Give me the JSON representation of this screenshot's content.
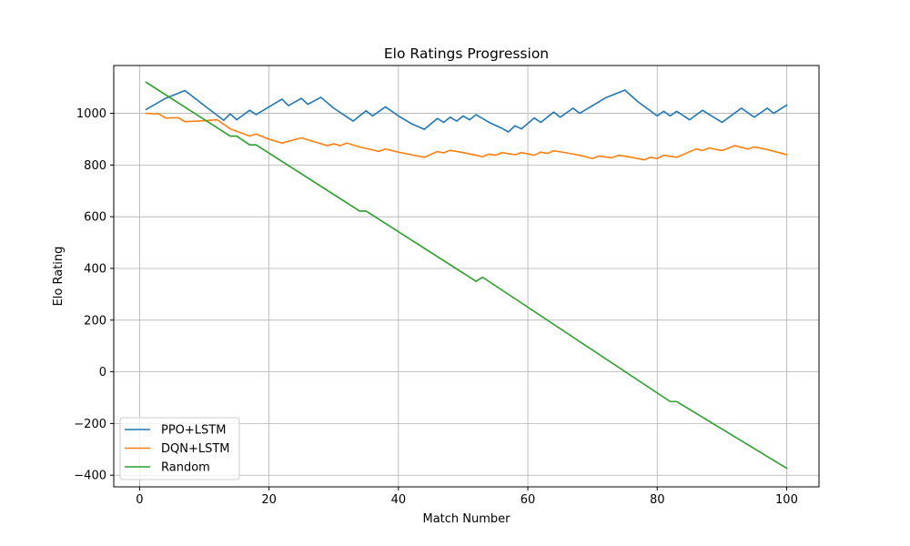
{
  "chart_data": {
    "type": "line",
    "title": "Elo Ratings Progression",
    "xlabel": "Match Number",
    "ylabel": "Elo Rating",
    "xlim": [
      -4,
      105
    ],
    "ylim": [
      -445,
      1185
    ],
    "xticks": [
      0,
      20,
      40,
      60,
      80,
      100
    ],
    "yticks": [
      -400,
      -200,
      0,
      200,
      400,
      600,
      800,
      1000
    ],
    "grid": true,
    "legend_position": "lower-left",
    "series": [
      {
        "name": "PPO+LSTM",
        "color": "#1f77b4",
        "x": [
          1,
          4,
          7,
          10,
          13,
          14,
          15,
          17,
          18,
          20,
          22,
          23,
          25,
          26,
          28,
          30,
          33,
          35,
          36,
          38,
          40,
          42,
          44,
          46,
          47,
          48,
          49,
          50,
          51,
          52,
          54,
          56,
          57,
          58,
          59,
          61,
          62,
          64,
          65,
          67,
          68,
          70,
          72,
          75,
          77,
          80,
          81,
          82,
          83,
          85,
          87,
          90,
          93,
          95,
          97,
          98,
          100
        ],
        "y": [
          1015,
          1058,
          1088,
          1030,
          973,
          998,
          975,
          1012,
          995,
          1025,
          1055,
          1030,
          1058,
          1035,
          1062,
          1020,
          970,
          1010,
          990,
          1025,
          990,
          960,
          938,
          980,
          965,
          985,
          970,
          990,
          975,
          995,
          965,
          942,
          928,
          952,
          940,
          982,
          965,
          1005,
          985,
          1020,
          1000,
          1030,
          1060,
          1090,
          1045,
          990,
          1008,
          990,
          1008,
          975,
          1012,
          965,
          1020,
          985,
          1020,
          1000,
          1032
        ]
      },
      {
        "name": "DQN+LSTM",
        "color": "#ff7f0e",
        "x": [
          1,
          3,
          4,
          6,
          7,
          9,
          12,
          14,
          17,
          18,
          20,
          22,
          25,
          27,
          29,
          30,
          31,
          32,
          34,
          37,
          38,
          40,
          42,
          44,
          46,
          47,
          48,
          50,
          52,
          53,
          54,
          55,
          56,
          58,
          59,
          61,
          62,
          63,
          64,
          66,
          68,
          70,
          71,
          73,
          74,
          76,
          78,
          79,
          80,
          81,
          83,
          86,
          87,
          88,
          90,
          92,
          94,
          95,
          97,
          100
        ],
        "y": [
          1000,
          998,
          982,
          983,
          968,
          970,
          975,
          940,
          912,
          920,
          900,
          885,
          905,
          890,
          875,
          882,
          875,
          885,
          870,
          853,
          862,
          850,
          840,
          830,
          852,
          847,
          857,
          848,
          838,
          832,
          842,
          838,
          848,
          840,
          848,
          838,
          850,
          845,
          855,
          847,
          838,
          825,
          835,
          828,
          838,
          830,
          820,
          830,
          825,
          838,
          830,
          862,
          856,
          866,
          856,
          875,
          862,
          870,
          860,
          840
        ]
      },
      {
        "name": "Random",
        "color": "#2ca02c",
        "x": [
          1,
          14,
          15,
          17,
          18,
          34,
          35,
          52,
          53,
          82,
          83,
          100
        ],
        "y": [
          1120,
          912,
          912,
          878,
          878,
          622,
          622,
          350,
          366,
          -115,
          -115,
          -373
        ]
      }
    ]
  }
}
